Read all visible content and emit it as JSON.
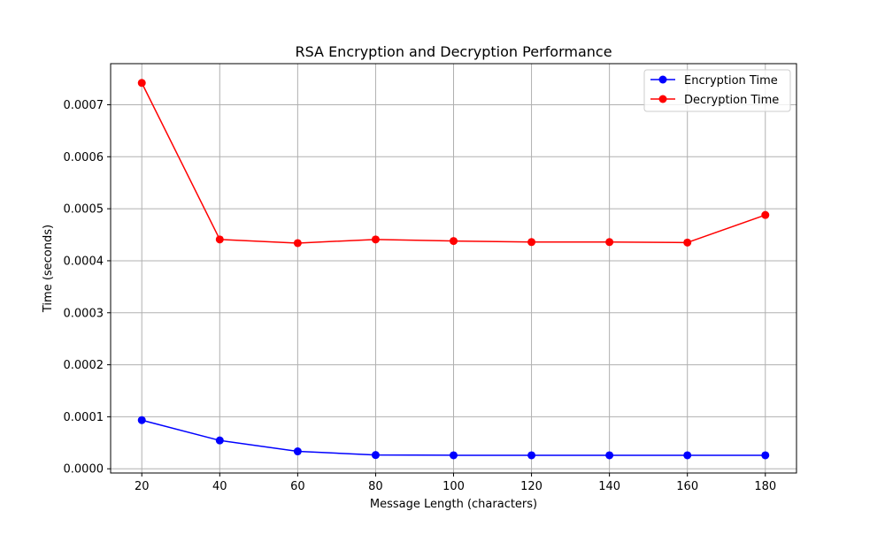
{
  "chart_data": {
    "type": "line",
    "title": "RSA Encryption and Decryption Performance",
    "xlabel": "Message Length (characters)",
    "ylabel": "Time (seconds)",
    "x": [
      20,
      40,
      60,
      80,
      100,
      120,
      140,
      160,
      180
    ],
    "xlim": [
      12,
      188
    ],
    "ylim": [
      -8.1e-06,
      0.000779
    ],
    "x_ticks": [
      20,
      40,
      60,
      80,
      100,
      120,
      140,
      160,
      180
    ],
    "y_ticks": [
      0.0,
      0.0001,
      0.0002,
      0.0003,
      0.0004,
      0.0005,
      0.0006,
      0.0007
    ],
    "y_tick_labels": [
      "0.0000",
      "0.0001",
      "0.0002",
      "0.0003",
      "0.0004",
      "0.0005",
      "0.0006",
      "0.0007"
    ],
    "grid": true,
    "legend_position": "top-right",
    "series": [
      {
        "name": "Encryption Time",
        "color": "#0000ff",
        "marker": "circle",
        "values": [
          9.35e-05,
          5.45e-05,
          3.35e-05,
          2.65e-05,
          2.6e-05,
          2.6e-05,
          2.6e-05,
          2.6e-05,
          2.6e-05
        ]
      },
      {
        "name": "Decryption Time",
        "color": "#ff0000",
        "marker": "circle",
        "values": [
          0.000742,
          0.000441,
          0.000434,
          0.000441,
          0.000438,
          0.000436,
          0.000436,
          0.000435,
          0.000488
        ]
      }
    ]
  }
}
